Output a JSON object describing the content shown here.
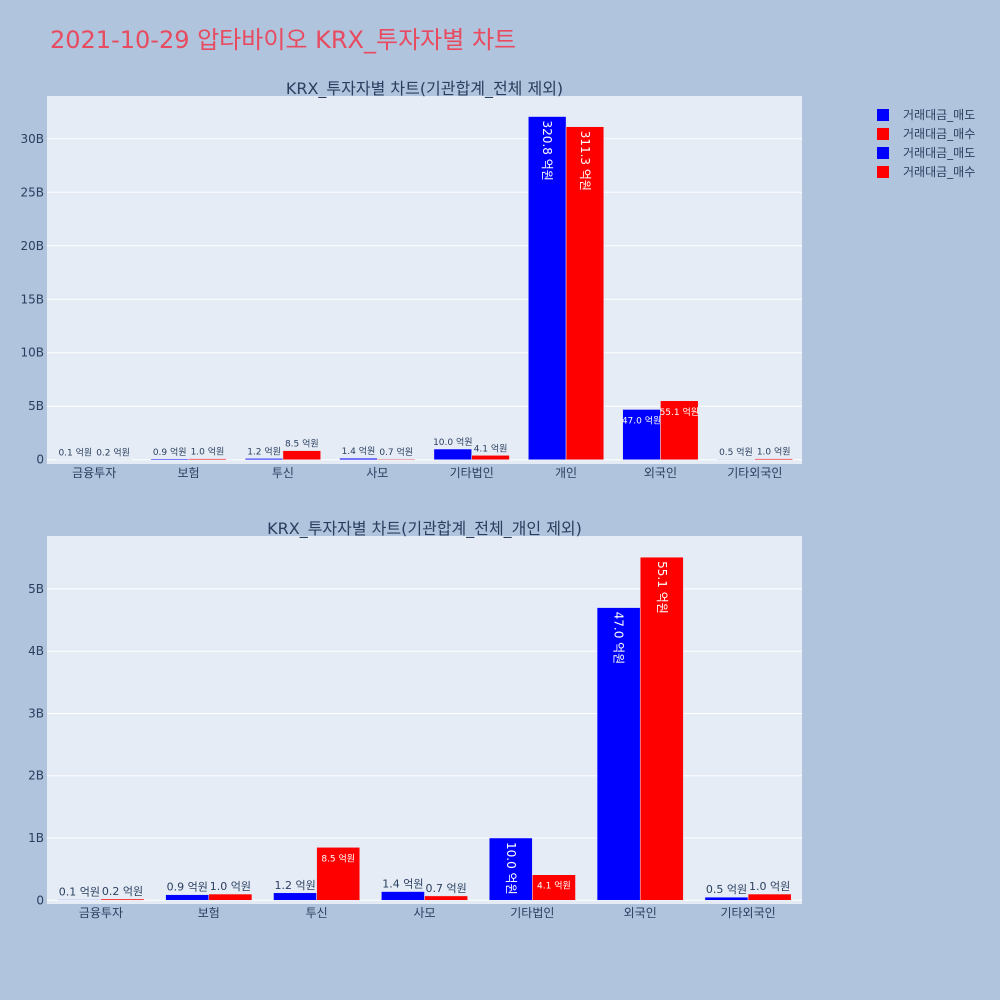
{
  "title": "2021-10-29 압타바이오 KRX_투자자별 차트",
  "chart_data": [
    {
      "type": "bar",
      "title": "KRX_투자자별 차트(기관합계_전체 제외)",
      "categories": [
        "금융투자",
        "보험",
        "투신",
        "사모",
        "기타법인",
        "개인",
        "외국인",
        "기타외국인"
      ],
      "series": [
        {
          "name": "거래대금_매도",
          "color": "#0000ff",
          "values": [
            10000000,
            90000000,
            120000000,
            140000000,
            1000000000,
            32080000000,
            4700000000,
            50000000
          ],
          "value_labels": [
            "0.1 억원",
            "0.9 억원",
            "1.2 억원",
            "1.4 억원",
            "10.0 억원",
            "320.8 억원",
            "47.0 억원",
            "0.5 억원"
          ]
        },
        {
          "name": "거래대금_매수",
          "color": "#ff0000",
          "values": [
            20000000,
            100000000,
            850000000,
            70000000,
            410000000,
            31130000000,
            5510000000,
            100000000
          ],
          "value_labels": [
            "0.2 억원",
            "1.0 억원",
            "8.5 억원",
            "0.7 억원",
            "4.1 억원",
            "311.3 억원",
            "55.1 억원",
            "1.0 억원"
          ]
        }
      ],
      "ylim": [
        -400000000,
        34000000000
      ],
      "yticks": [
        0,
        {
          "value": 5000000000,
          "label": "5B"
        },
        {
          "value": 10000000000,
          "label": "10B"
        },
        {
          "value": 15000000000,
          "label": "15B"
        },
        {
          "value": 20000000000,
          "label": "20B"
        },
        {
          "value": 25000000000,
          "label": "25B"
        },
        {
          "value": 30000000000,
          "label": "30B"
        }
      ],
      "grid": true
    },
    {
      "type": "bar",
      "title": "KRX_투자자별 차트(기관합계_전체_개인 제외)",
      "categories": [
        "금융투자",
        "보험",
        "투신",
        "사모",
        "기타법인",
        "외국인",
        "기타외국인"
      ],
      "series": [
        {
          "name": "거래대금_매도",
          "color": "#0000ff",
          "values": [
            10000000,
            90000000,
            120000000,
            140000000,
            1000000000,
            4700000000,
            50000000
          ],
          "value_labels": [
            "0.1 억원",
            "0.9 억원",
            "1.2 억원",
            "1.4 억원",
            "10.0 억원",
            "47.0 억원",
            "0.5 억원"
          ]
        },
        {
          "name": "거래대금_매수",
          "color": "#ff0000",
          "values": [
            20000000,
            100000000,
            850000000,
            70000000,
            410000000,
            5510000000,
            100000000
          ],
          "value_labels": [
            "0.2 억원",
            "1.0 억원",
            "8.5 억원",
            "0.7 억원",
            "4.1 억원",
            "55.1 억원",
            "1.0 억원"
          ]
        }
      ],
      "ylim": [
        -60000000,
        5850000000
      ],
      "yticks": [
        0,
        {
          "value": 1000000000,
          "label": "1B"
        },
        {
          "value": 2000000000,
          "label": "2B"
        },
        {
          "value": 3000000000,
          "label": "3B"
        },
        {
          "value": 4000000000,
          "label": "4B"
        },
        {
          "value": 5000000000,
          "label": "5B"
        }
      ],
      "grid": true
    }
  ]
}
